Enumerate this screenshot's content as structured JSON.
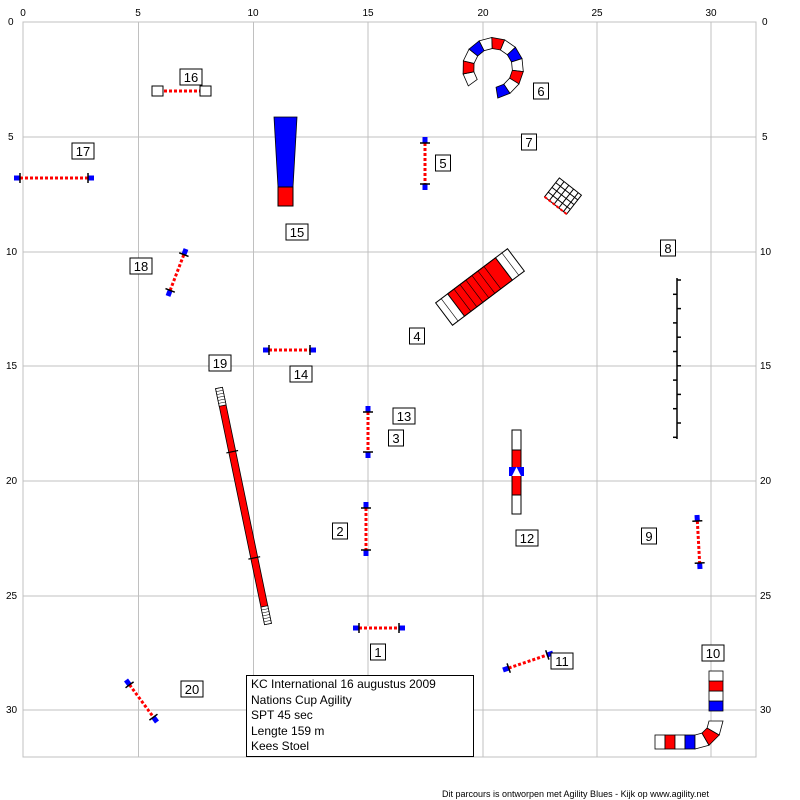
{
  "axis": {
    "x_ticks": [
      "0",
      "5",
      "10",
      "15",
      "20",
      "25",
      "30"
    ],
    "y_ticks": [
      "0",
      "5",
      "10",
      "15",
      "20",
      "25",
      "30"
    ]
  },
  "obstacle_numbers": [
    "1",
    "2",
    "3",
    "4",
    "5",
    "6",
    "7",
    "8",
    "9",
    "10",
    "11",
    "12",
    "13",
    "14",
    "15",
    "16",
    "17",
    "18",
    "19",
    "20"
  ],
  "info": {
    "line1": "KC International 16 augustus 2009",
    "line2": "Nations Cup Agility",
    "line3": "SPT 45 sec",
    "line4": "Lengte 159 m",
    "line5": "Kees Stoel"
  },
  "footer": "Dit parcours is ontworpen met Agility Blues - Kijk op www.agility.net",
  "colors": {
    "red": "#ff0000",
    "blue": "#0000ff",
    "grid": "#c0c0c0"
  }
}
